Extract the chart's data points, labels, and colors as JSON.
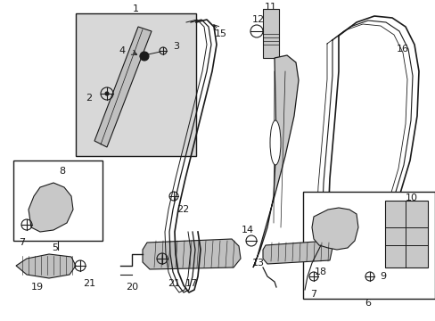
{
  "bg_color": "#ffffff",
  "line_color": "#1a1a1a",
  "fill_light": "#d8d8d8",
  "fill_mid": "#b8b8b8",
  "figsize": [
    4.89,
    3.6
  ],
  "dpi": 100
}
